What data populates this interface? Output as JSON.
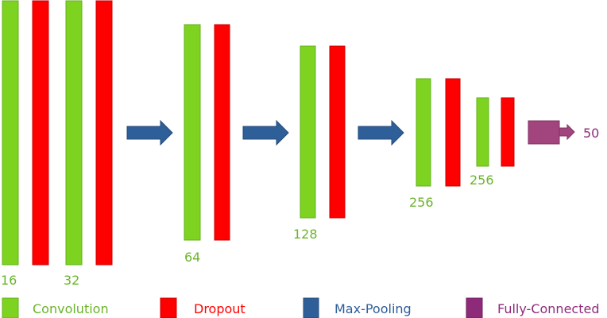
{
  "colors": {
    "convolution": "#7ed321",
    "dropout": "#ff0000",
    "max_pooling": "#2e5f99",
    "fully_connected": "#a2457e",
    "label_green": "#6ab42a",
    "label_purple": "#8e2a7a"
  },
  "layers": [
    {
      "type": "convolution",
      "label": "16"
    },
    {
      "type": "dropout"
    },
    {
      "type": "convolution",
      "label": "32"
    },
    {
      "type": "dropout"
    },
    {
      "type": "max_pooling"
    },
    {
      "type": "convolution",
      "label": "64"
    },
    {
      "type": "dropout"
    },
    {
      "type": "max_pooling"
    },
    {
      "type": "convolution",
      "label": "128"
    },
    {
      "type": "dropout"
    },
    {
      "type": "max_pooling"
    },
    {
      "type": "convolution",
      "label": "256"
    },
    {
      "type": "dropout"
    },
    {
      "type": "convolution",
      "label": "256"
    },
    {
      "type": "dropout"
    },
    {
      "type": "fully_connected",
      "label": "50"
    }
  ],
  "legend": {
    "convolution": "Convolution",
    "dropout": "Dropout",
    "max_pooling": "Max-Pooling",
    "fully_connected": "Fully-Connected"
  }
}
